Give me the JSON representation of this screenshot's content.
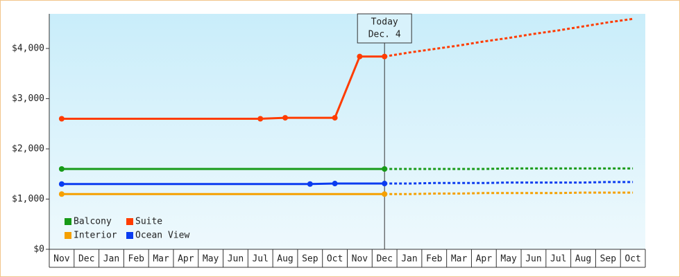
{
  "chart_data": {
    "type": "line",
    "annotation": {
      "text": "Today",
      "subtext": "Dec. 4"
    },
    "categories": [
      "Nov",
      "Dec",
      "Jan",
      "Feb",
      "Mar",
      "Apr",
      "May",
      "Jun",
      "Jul",
      "Aug",
      "Sep",
      "Oct",
      "Nov",
      "Dec",
      "Jan",
      "Feb",
      "Mar",
      "Apr",
      "May",
      "Jun",
      "Jul",
      "Aug",
      "Sep",
      "Oct"
    ],
    "series": [
      {
        "name": "Balcony",
        "color": "#179a17",
        "values": [
          1600,
          1600,
          1600,
          1600,
          1600,
          1600,
          1600,
          1600,
          1600,
          1600,
          1600,
          1600,
          1600,
          1600,
          null,
          null,
          null,
          null,
          null,
          null,
          null,
          null,
          null,
          null
        ],
        "forecast": [
          null,
          null,
          null,
          null,
          null,
          null,
          null,
          null,
          null,
          null,
          null,
          null,
          null,
          1600,
          1600,
          1600,
          1600,
          1600,
          1610,
          1610,
          1610,
          1610,
          1610,
          1610
        ]
      },
      {
        "name": "Suite",
        "color": "#ff3c00",
        "values": [
          2600,
          2600,
          2600,
          2600,
          2600,
          2600,
          2600,
          2600,
          2600,
          2620,
          2620,
          2620,
          3840,
          3840,
          null,
          null,
          null,
          null,
          null,
          null,
          null,
          null,
          null,
          null
        ],
        "forecast": [
          null,
          null,
          null,
          null,
          null,
          null,
          null,
          null,
          null,
          null,
          null,
          null,
          null,
          3840,
          3920,
          3990,
          4060,
          4140,
          4210,
          4290,
          4360,
          4440,
          4520,
          4590
        ]
      },
      {
        "name": "Interior",
        "color": "#f5a000",
        "values": [
          1100,
          1100,
          1100,
          1100,
          1100,
          1100,
          1100,
          1100,
          1100,
          1100,
          1100,
          1100,
          1100,
          1100,
          null,
          null,
          null,
          null,
          null,
          null,
          null,
          null,
          null,
          null
        ],
        "forecast": [
          null,
          null,
          null,
          null,
          null,
          null,
          null,
          null,
          null,
          null,
          null,
          null,
          null,
          1100,
          1100,
          1110,
          1110,
          1120,
          1120,
          1120,
          1120,
          1130,
          1130,
          1130
        ]
      },
      {
        "name": "Ocean View",
        "color": "#0a3cf0",
        "values": [
          1300,
          1300,
          1300,
          1300,
          1300,
          1300,
          1300,
          1300,
          1300,
          1300,
          1300,
          1310,
          1310,
          1310,
          null,
          null,
          null,
          null,
          null,
          null,
          null,
          null,
          null,
          null
        ],
        "forecast": [
          null,
          null,
          null,
          null,
          null,
          null,
          null,
          null,
          null,
          null,
          null,
          null,
          null,
          1310,
          1310,
          1320,
          1320,
          1320,
          1330,
          1330,
          1330,
          1330,
          1340,
          1340
        ]
      }
    ],
    "ylim": [
      0,
      4690
    ],
    "yticks": [
      {
        "value": 0,
        "label": "$0"
      },
      {
        "value": 1000,
        "label": "$1,000"
      },
      {
        "value": 2000,
        "label": "$2,000"
      },
      {
        "value": 3000,
        "label": "$3,000"
      },
      {
        "value": 4000,
        "label": "$4,000"
      }
    ],
    "legend": "bottom-left"
  }
}
